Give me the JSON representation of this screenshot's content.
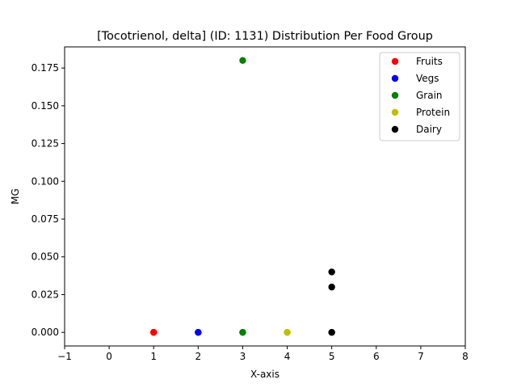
{
  "chart_data": {
    "type": "scatter",
    "title": "[Tocotrienol, delta] (ID: 1131) Distribution Per Food Group",
    "xlabel": "X-axis",
    "ylabel": "MG",
    "xlim": [
      -1,
      8
    ],
    "ylim": [
      -0.009,
      0.189
    ],
    "x_ticks": [
      -1,
      0,
      1,
      2,
      3,
      4,
      5,
      6,
      7,
      8
    ],
    "x_tick_labels": [
      "−1",
      "0",
      "1",
      "2",
      "3",
      "4",
      "5",
      "6",
      "7",
      "8"
    ],
    "y_ticks": [
      0.0,
      0.025,
      0.05,
      0.075,
      0.1,
      0.125,
      0.15,
      0.175
    ],
    "y_tick_labels": [
      "0.000",
      "0.025",
      "0.050",
      "0.075",
      "0.100",
      "0.125",
      "0.150",
      "0.175"
    ],
    "grid": false,
    "legend_position": "top-right",
    "series": [
      {
        "name": "Fruits",
        "color": "#ff0000",
        "points": [
          [
            1,
            0.0
          ],
          [
            1,
            0.0
          ],
          [
            1,
            0.0
          ]
        ]
      },
      {
        "name": "Vegs",
        "color": "#0000ff",
        "points": [
          [
            2,
            0.0
          ],
          [
            2,
            0.0
          ],
          [
            2,
            0.0
          ]
        ]
      },
      {
        "name": "Grain",
        "color": "#008000",
        "points": [
          [
            3,
            0.0
          ],
          [
            3,
            0.0
          ],
          [
            3,
            0.18
          ]
        ]
      },
      {
        "name": "Protein",
        "color": "#bfbf00",
        "points": [
          [
            4,
            0.0
          ],
          [
            4,
            0.0
          ],
          [
            4,
            0.0
          ]
        ]
      },
      {
        "name": "Dairy",
        "color": "#000000",
        "points": [
          [
            5,
            0.0
          ],
          [
            5,
            0.0
          ],
          [
            5,
            0.03
          ],
          [
            5,
            0.04
          ]
        ]
      }
    ]
  }
}
